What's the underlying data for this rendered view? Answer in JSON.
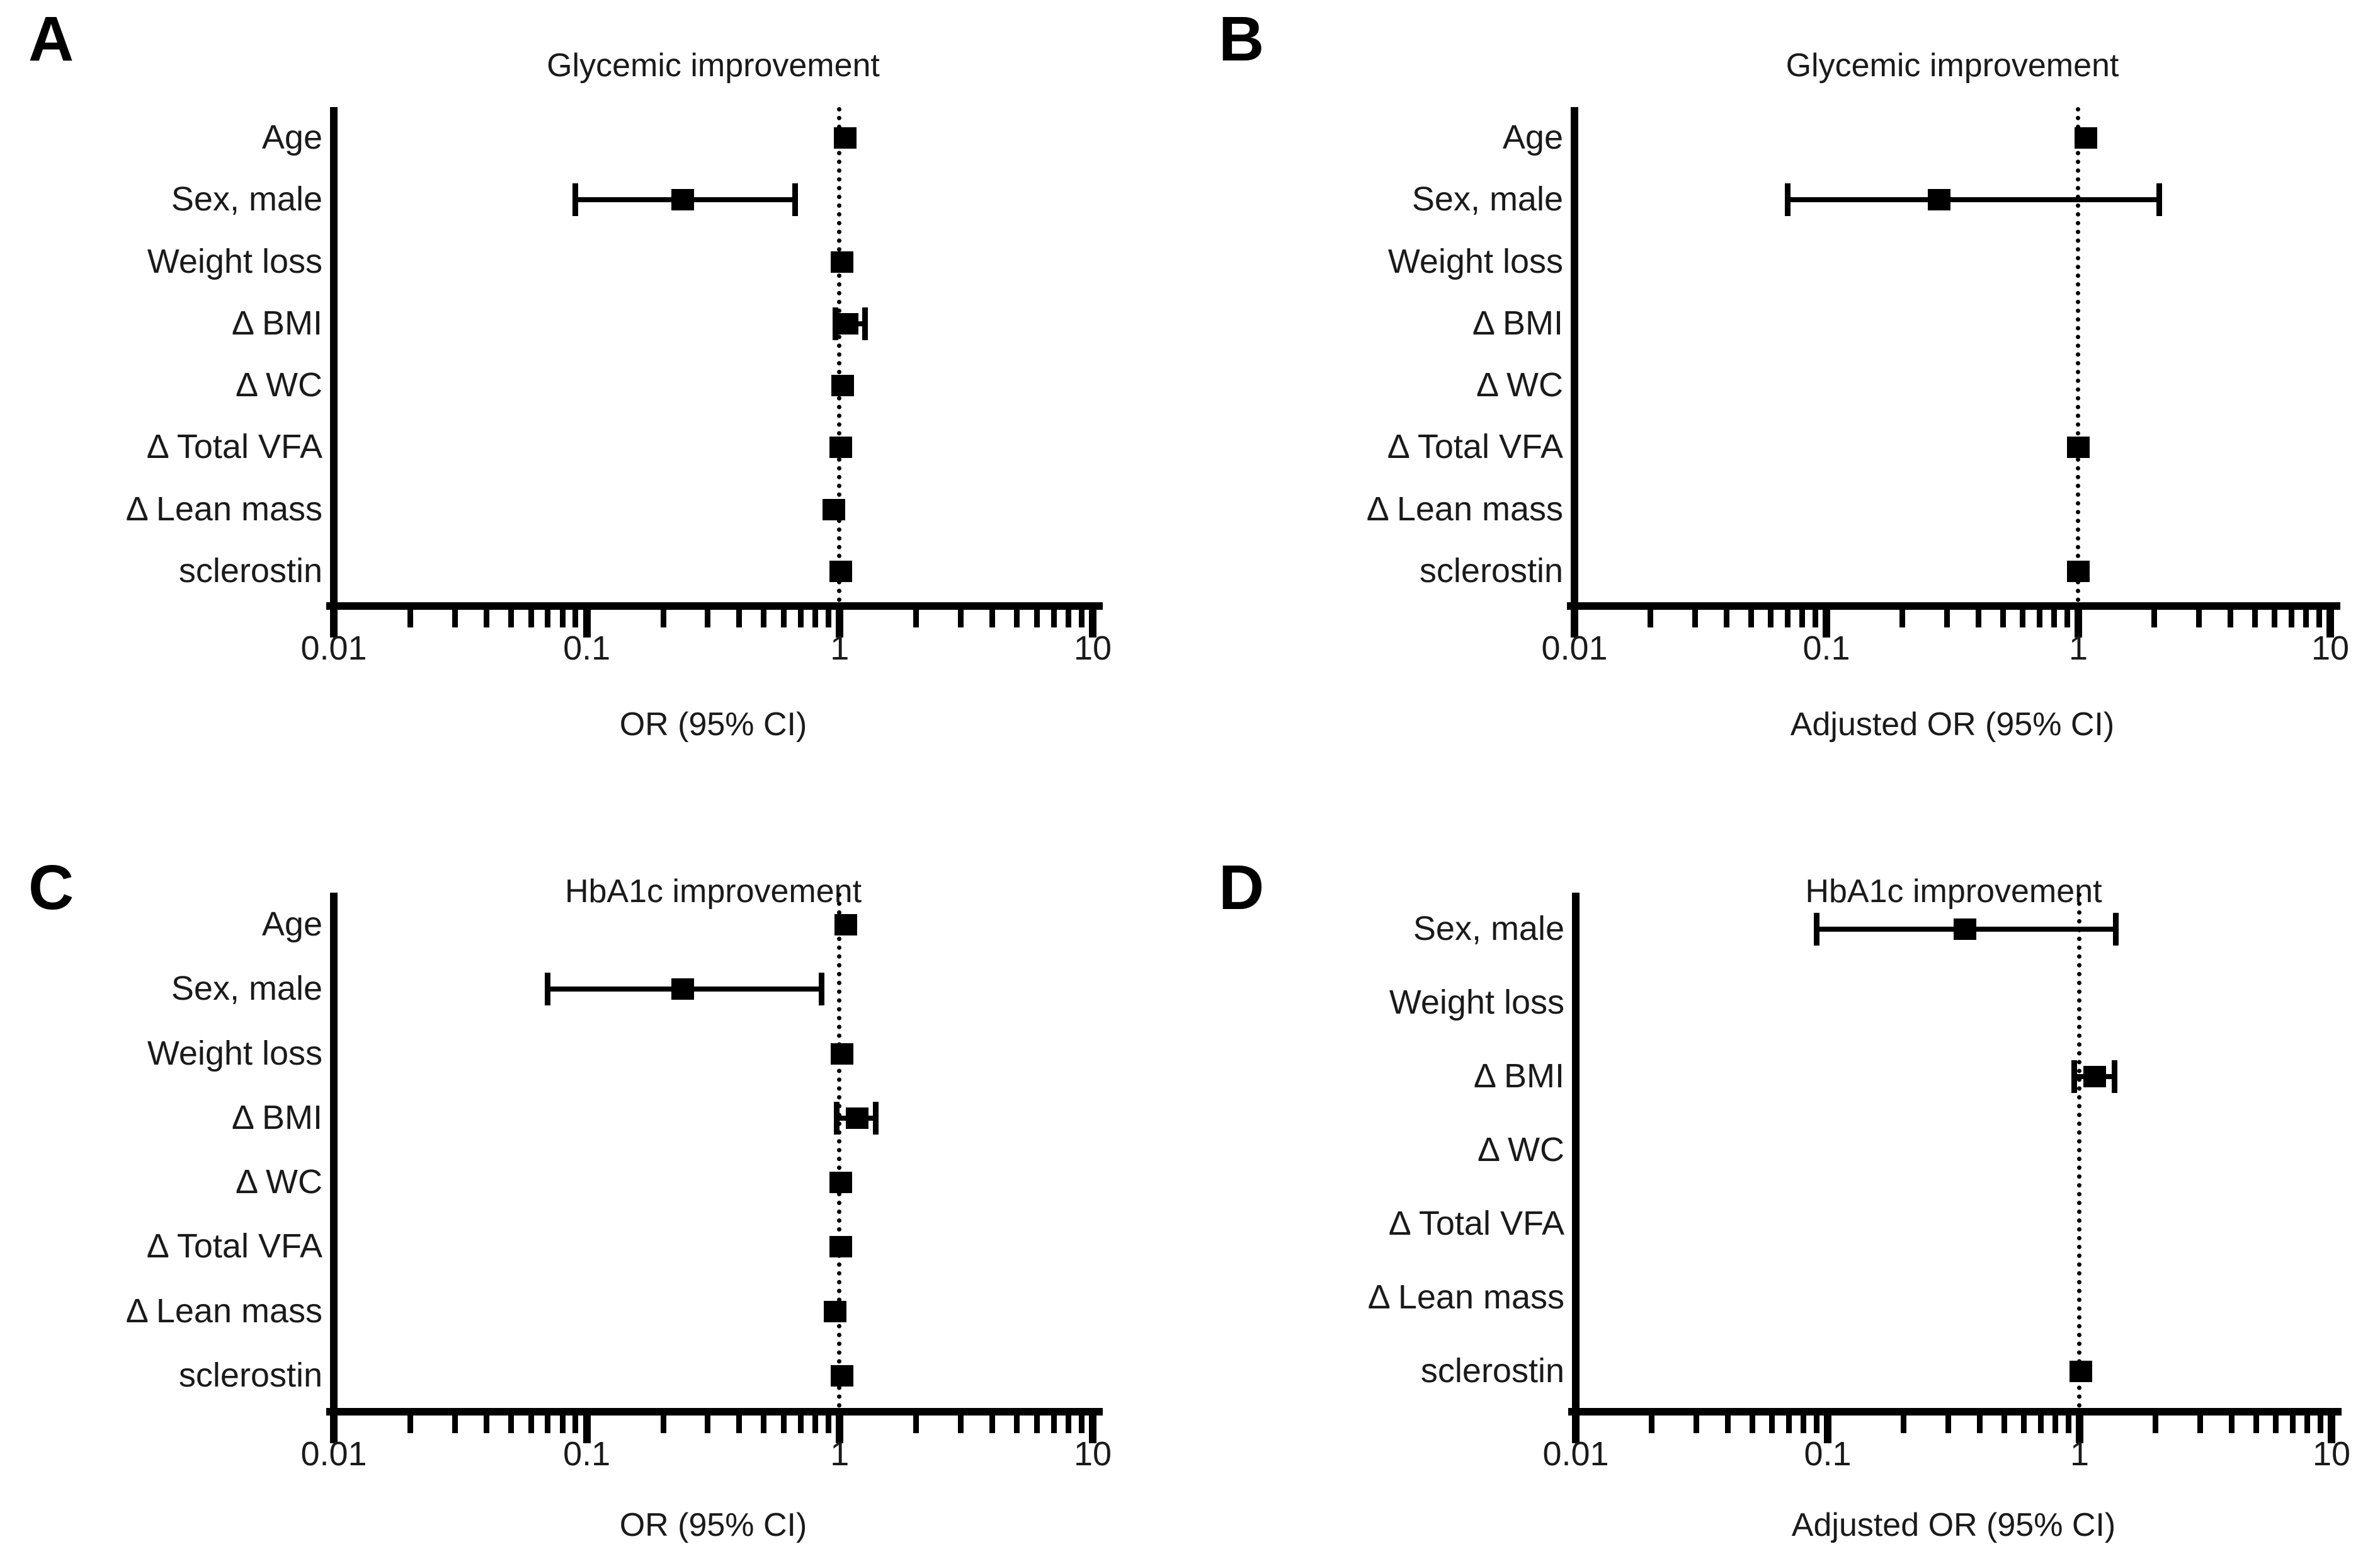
{
  "figure": {
    "background": "#ffffff",
    "ink": "#000000",
    "panel_letters": [
      "A",
      "B",
      "C",
      "D"
    ]
  },
  "chart_data": [
    {
      "type": "scatter",
      "subtype": "forest-plot",
      "panel_label": "A",
      "title": "Glycemic improvement",
      "xlabel": "OR (95% CI)",
      "xscale": "log",
      "xlim": [
        0.01,
        10
      ],
      "x_ticks": [
        0.01,
        0.1,
        1,
        10
      ],
      "x_tick_labels": [
        "0.01",
        "0.1",
        "1",
        "10"
      ],
      "reference_line": 1,
      "grid": false,
      "categories": [
        "Age",
        "Sex, male",
        "Weight loss",
        "Δ BMI",
        "Δ WC",
        "Δ Total VFA",
        "Δ Lean mass",
        "sclerostin"
      ],
      "points": [
        {
          "or": 1.05,
          "ci": null
        },
        {
          "or": 0.24,
          "ci": [
            0.09,
            0.67
          ]
        },
        {
          "or": 1.02,
          "ci": null
        },
        {
          "or": 1.07,
          "ci": [
            0.96,
            1.26
          ]
        },
        {
          "or": 1.03,
          "ci": null
        },
        {
          "or": 1.01,
          "ci": null
        },
        {
          "or": 0.95,
          "ci": null
        },
        {
          "or": 1.01,
          "ci": null
        }
      ]
    },
    {
      "type": "scatter",
      "subtype": "forest-plot",
      "panel_label": "B",
      "title": "Glycemic improvement",
      "xlabel": "Adjusted OR (95% CI)",
      "xscale": "log",
      "xlim": [
        0.01,
        10
      ],
      "x_ticks": [
        0.01,
        0.1,
        1,
        10
      ],
      "x_tick_labels": [
        "0.01",
        "0.1",
        "1",
        "10"
      ],
      "reference_line": 1,
      "grid": false,
      "categories": [
        "Age",
        "Sex, male",
        "Weight loss",
        "Δ BMI",
        "Δ WC",
        "Δ Total VFA",
        "Δ Lean mass",
        "sclerostin"
      ],
      "points": [
        {
          "or": 1.07,
          "ci": null
        },
        {
          "or": 0.28,
          "ci": [
            0.07,
            2.1
          ]
        },
        {
          "or": null,
          "ci": null
        },
        {
          "or": null,
          "ci": null
        },
        {
          "or": null,
          "ci": null
        },
        {
          "or": 1.0,
          "ci": null
        },
        {
          "or": null,
          "ci": null
        },
        {
          "or": 1.0,
          "ci": null
        }
      ]
    },
    {
      "type": "scatter",
      "subtype": "forest-plot",
      "panel_label": "C",
      "title": "HbA1c improvement",
      "xlabel": "OR (95% CI)",
      "xscale": "log",
      "xlim": [
        0.01,
        10
      ],
      "x_ticks": [
        0.01,
        0.1,
        1,
        10
      ],
      "x_tick_labels": [
        "0.01",
        "0.1",
        "1",
        "10"
      ],
      "reference_line": 1,
      "grid": false,
      "categories": [
        "Age",
        "Sex, male",
        "Weight loss",
        "Δ BMI",
        "Δ WC",
        "Δ Total VFA",
        "Δ Lean mass",
        "sclerostin"
      ],
      "points": [
        {
          "or": 1.06,
          "ci": null
        },
        {
          "or": 0.24,
          "ci": [
            0.07,
            0.85
          ]
        },
        {
          "or": 1.02,
          "ci": null
        },
        {
          "or": 1.17,
          "ci": [
            0.97,
            1.39
          ]
        },
        {
          "or": 1.01,
          "ci": null
        },
        {
          "or": 1.01,
          "ci": null
        },
        {
          "or": 0.96,
          "ci": null
        },
        {
          "or": 1.02,
          "ci": null
        }
      ]
    },
    {
      "type": "scatter",
      "subtype": "forest-plot",
      "panel_label": "D",
      "title": "HbA1c improvement",
      "xlabel": "Adjusted OR (95% CI)",
      "xscale": "log",
      "xlim": [
        0.01,
        10
      ],
      "x_ticks": [
        0.01,
        0.1,
        1,
        10
      ],
      "x_tick_labels": [
        "0.01",
        "0.1",
        "1",
        "10"
      ],
      "reference_line": 1,
      "grid": false,
      "categories": [
        "Sex, male",
        "Weight loss",
        "Δ BMI",
        "Δ WC",
        "Δ Total VFA",
        "Δ Lean mass",
        "sclerostin"
      ],
      "points": [
        {
          "or": 0.35,
          "ci": [
            0.09,
            1.4
          ]
        },
        {
          "or": null,
          "ci": null
        },
        {
          "or": 1.15,
          "ci": [
            0.95,
            1.38
          ]
        },
        {
          "or": null,
          "ci": null
        },
        {
          "or": null,
          "ci": null
        },
        {
          "or": null,
          "ci": null
        },
        {
          "or": 1.01,
          "ci": null
        }
      ]
    }
  ]
}
